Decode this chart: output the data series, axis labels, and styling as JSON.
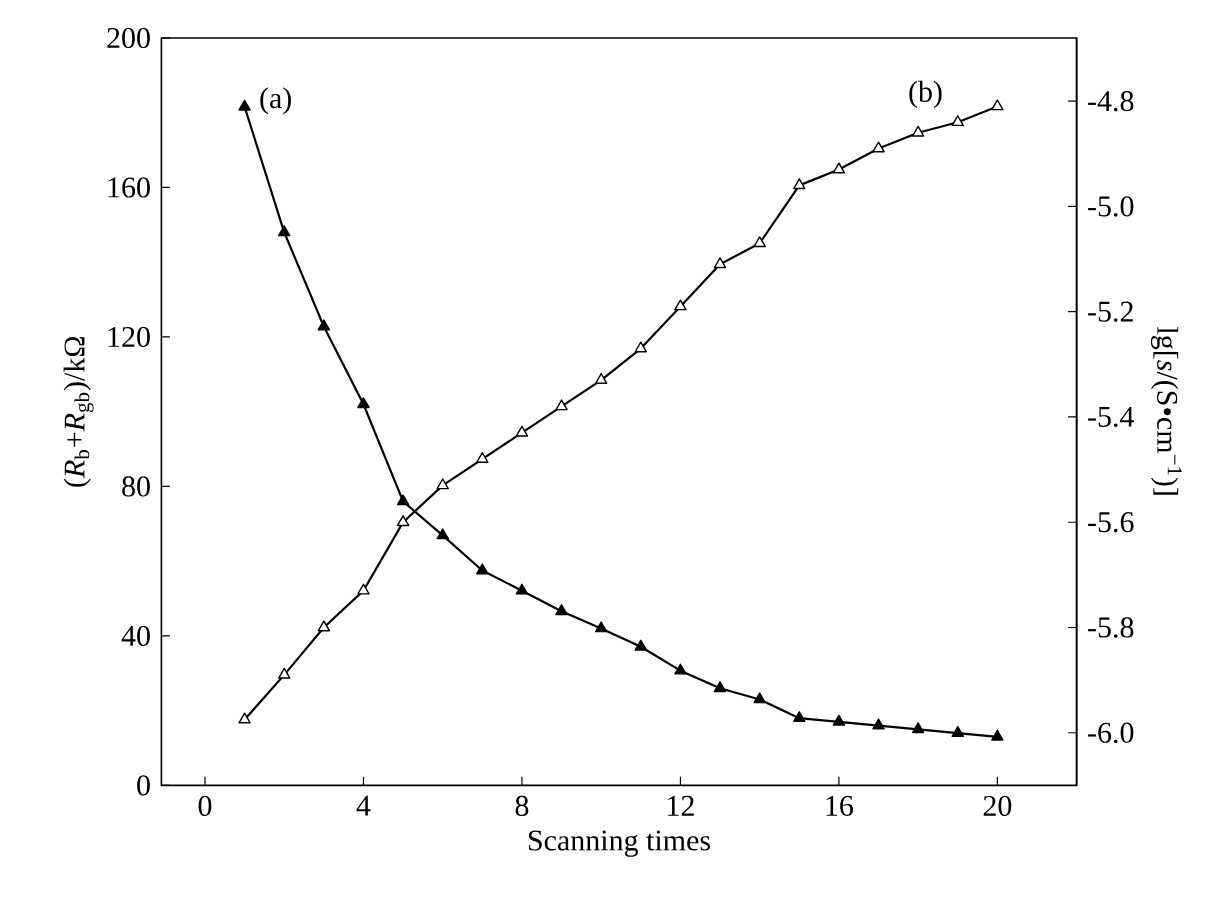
{
  "chart_data": {
    "type": "line",
    "xlabel": "Scanning times",
    "ylabel": "(*R*$_{b}$+*R*$_{gb}$)/kΩ",
    "y2label": "lg[*s*/(S•cm$^{−1}$)]",
    "x": [
      1,
      2,
      3,
      4,
      5,
      6,
      7,
      8,
      9,
      10,
      11,
      12,
      13,
      14,
      15,
      16,
      17,
      18,
      19,
      20
    ],
    "series": [
      {
        "name": "(a)",
        "color": "#000000",
        "marker": "triangle",
        "values": [
          181.6,
          148,
          122.8,
          102,
          76,
          66.9,
          57.5,
          52.1,
          46.6,
          42,
          37.1,
          30.7,
          26,
          23,
          18,
          17,
          16,
          15,
          14,
          13
        ]
      },
      {
        "name": "(b)",
        "color": "#000000",
        "marker": "triangle",
        "axis": "y2",
        "values": [
          -5.975,
          -5.89,
          -5.8,
          -5.73,
          -5.6,
          -5.53,
          -5.48,
          -5.43,
          -5.38,
          -5.33,
          -5.27,
          -5.19,
          -5.11,
          -5.07,
          -4.96,
          -4.93,
          -4.89,
          -4.86,
          -4.84,
          -4.81
        ]
      }
    ],
    "xlim": [
      -1.1,
      22
    ],
    "xticks": [
      0,
      4,
      8,
      12,
      16,
      20
    ],
    "ylim": [
      0,
      200
    ],
    "yticks": [
      0,
      40,
      80,
      120,
      160,
      200
    ],
    "y2lim": [
      -6.1,
      -4.68
    ],
    "y2ticks": [
      {
        "value": -6.0,
        "label": "-6.0"
      },
      {
        "value": -5.8,
        "label": "-5.8"
      },
      {
        "value": -5.6,
        "label": "-5.6"
      },
      {
        "value": -5.4,
        "label": "-5.4"
      },
      {
        "value": -5.2,
        "label": "-5.2"
      },
      {
        "value": -5.0,
        "label": "-5.0"
      },
      {
        "value": -4.8,
        "label": "-4.8"
      }
    ],
    "line_style": "solid"
  }
}
